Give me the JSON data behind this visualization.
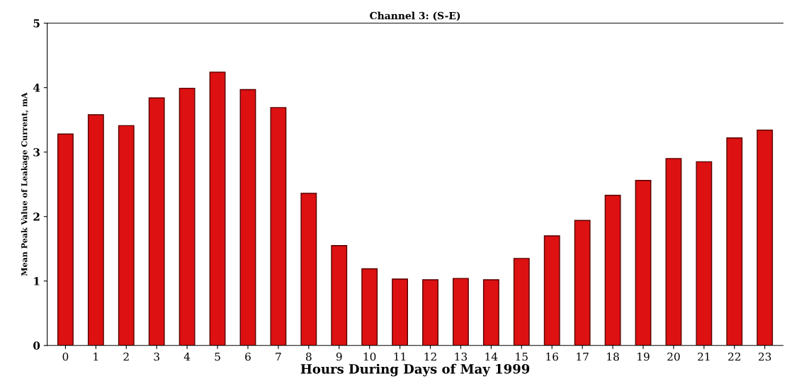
{
  "chart_data": {
    "type": "bar",
    "title": "Channel 3: (S-E)",
    "xlabel": "Hours During Days of May 1999",
    "ylabel": "Mean Peak Value of Leakage Current, mA",
    "categories": [
      "0",
      "1",
      "2",
      "3",
      "4",
      "5",
      "6",
      "7",
      "8",
      "9",
      "10",
      "11",
      "12",
      "13",
      "14",
      "15",
      "16",
      "17",
      "18",
      "19",
      "20",
      "21",
      "22",
      "23"
    ],
    "values": [
      3.28,
      3.58,
      3.41,
      3.84,
      3.99,
      4.24,
      3.97,
      3.69,
      2.36,
      1.55,
      1.19,
      1.03,
      1.02,
      1.04,
      1.02,
      1.35,
      1.7,
      1.94,
      2.33,
      2.56,
      2.9,
      2.85,
      3.22,
      3.34
    ],
    "color": "#dd1111",
    "ylim": [
      0,
      5
    ],
    "yticks": [
      0,
      1,
      2,
      3,
      4,
      5
    ],
    "grid": false,
    "legend": false
  }
}
